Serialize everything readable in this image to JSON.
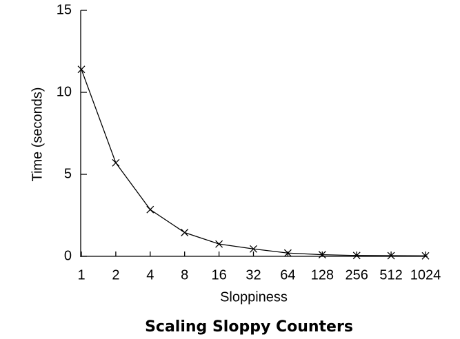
{
  "chart_data": {
    "type": "line",
    "title": "Scaling Sloppy Counters",
    "x_label": "Sloppiness",
    "y_label": "Time (seconds)",
    "categories": [
      "1",
      "2",
      "4",
      "8",
      "16",
      "32",
      "64",
      "128",
      "256",
      "512",
      "1024"
    ],
    "values": [
      11.4,
      5.7,
      2.85,
      1.45,
      0.75,
      0.45,
      0.2,
      0.1,
      0.05,
      0.04,
      0.03
    ],
    "color": "#000000",
    "marker": "x",
    "ylim": [
      0,
      15
    ],
    "yticks": [
      0,
      5,
      10,
      15
    ],
    "grid": false
  }
}
